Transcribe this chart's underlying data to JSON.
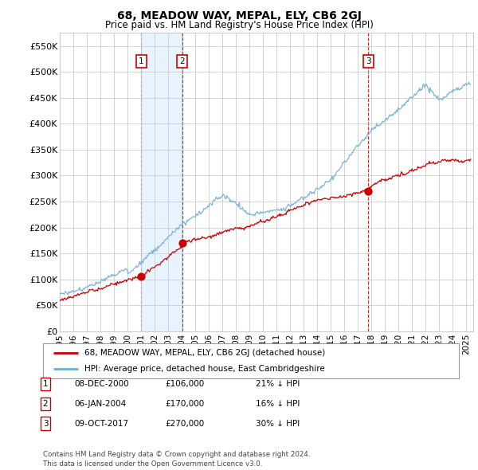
{
  "title": "68, MEADOW WAY, MEPAL, ELY, CB6 2GJ",
  "subtitle": "Price paid vs. HM Land Registry's House Price Index (HPI)",
  "ylabel_ticks": [
    "£0",
    "£50K",
    "£100K",
    "£150K",
    "£200K",
    "£250K",
    "£300K",
    "£350K",
    "£400K",
    "£450K",
    "£500K",
    "£550K"
  ],
  "ytick_values": [
    0,
    50000,
    100000,
    150000,
    200000,
    250000,
    300000,
    350000,
    400000,
    450000,
    500000,
    550000
  ],
  "ylim": [
    0,
    575000
  ],
  "xlim_start": 1995.0,
  "xlim_end": 2025.5,
  "hpi_color": "#6baed6",
  "sold_color": "#cc0000",
  "vline_color": "#cc0000",
  "shade_color": "#ddeeff",
  "grid_color": "#cccccc",
  "background_color": "#ffffff",
  "sale_dates_num": [
    2001.0,
    2004.04,
    2017.77
  ],
  "sale_prices": [
    106000,
    170000,
    270000
  ],
  "sale_labels": [
    "1",
    "2",
    "3"
  ],
  "vline_x": [
    2001.0,
    2004.04,
    2017.77
  ],
  "legend_property_label": "68, MEADOW WAY, MEPAL, ELY, CB6 2GJ (detached house)",
  "legend_hpi_label": "HPI: Average price, detached house, East Cambridgeshire",
  "table_rows": [
    {
      "num": "1",
      "date": "08-DEC-2000",
      "price": "£106,000",
      "pct": "21% ↓ HPI"
    },
    {
      "num": "2",
      "date": "06-JAN-2004",
      "price": "£170,000",
      "pct": "16% ↓ HPI"
    },
    {
      "num": "3",
      "date": "09-OCT-2017",
      "price": "£270,000",
      "pct": "30% ↓ HPI"
    }
  ],
  "footer": "Contains HM Land Registry data © Crown copyright and database right 2024.\nThis data is licensed under the Open Government Licence v3.0.",
  "xtick_years": [
    1995,
    1996,
    1997,
    1998,
    1999,
    2000,
    2001,
    2002,
    2003,
    2004,
    2005,
    2006,
    2007,
    2008,
    2009,
    2010,
    2011,
    2012,
    2013,
    2014,
    2015,
    2016,
    2017,
    2018,
    2019,
    2020,
    2021,
    2022,
    2023,
    2024,
    2025
  ]
}
